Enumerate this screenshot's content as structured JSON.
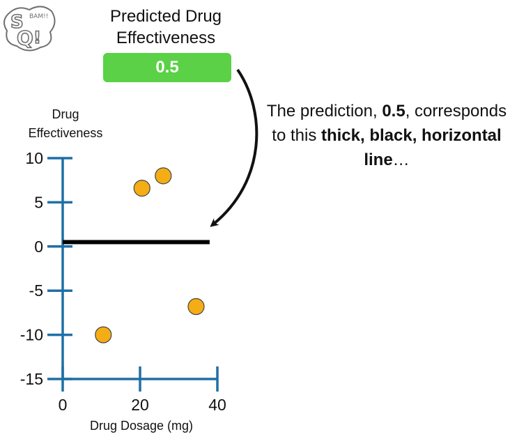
{
  "header": {
    "title": "Predicted Drug Effectiveness",
    "prediction_value": "0.5",
    "prediction_color": "#5ad146"
  },
  "annotation": {
    "part1": "The prediction, ",
    "value": "0.5",
    "part2": ", corresponds to this ",
    "bold": "thick, black, horizontal line",
    "part3": "…"
  },
  "logo": {
    "icon": "statquest-logo",
    "text": "StatQuest BAM!!"
  },
  "chart_data": {
    "type": "scatter",
    "ylabel": "Drug Effectiveness",
    "xlabel": "Drug Dosage (mg)",
    "xlim": [
      0,
      40
    ],
    "ylim": [
      -15,
      10
    ],
    "xticks": [
      0,
      20,
      40
    ],
    "yticks": [
      10,
      5,
      0,
      -5,
      -10,
      -15
    ],
    "points": [
      {
        "x": 10.5,
        "y": -10.0
      },
      {
        "x": 20.5,
        "y": 6.6
      },
      {
        "x": 26.0,
        "y": 8.0
      },
      {
        "x": 34.5,
        "y": -6.8
      }
    ],
    "prediction_line": {
      "y": 0.5,
      "x_start": 0,
      "x_end": 38
    },
    "grid": false,
    "marker_color": "#f5ad15",
    "axis_color": "#1f6fa6",
    "line_color": "#000000"
  }
}
